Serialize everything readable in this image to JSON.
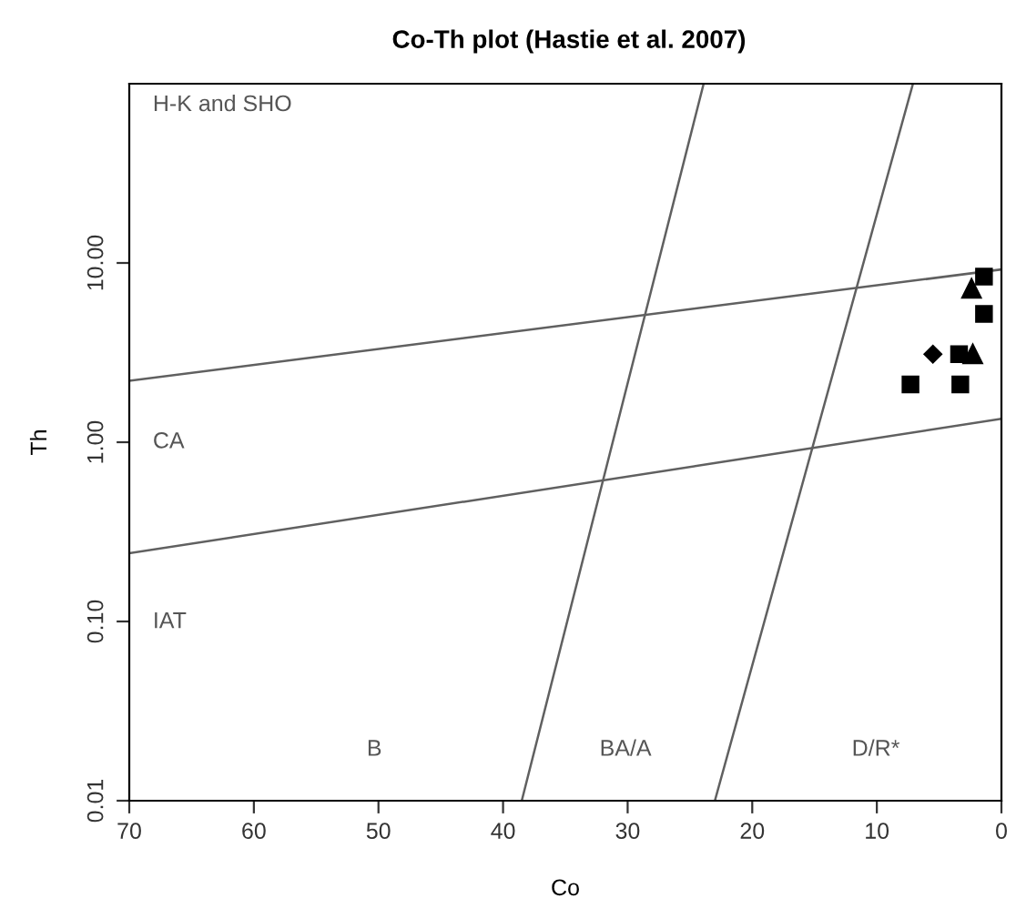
{
  "chart_data": {
    "type": "scatter",
    "title": "Co-Th plot (Hastie et al. 2007)",
    "xlabel": "Co",
    "ylabel": "Th",
    "log": "y",
    "xlim": [
      70,
      0
    ],
    "ylim": [
      0.01,
      100
    ],
    "xticks": [
      70,
      60,
      50,
      40,
      30,
      20,
      10,
      0
    ],
    "yticks": [
      {
        "value": 0.01,
        "label": "0.01"
      },
      {
        "value": 0.1,
        "label": "0.10"
      },
      {
        "value": 1,
        "label": "1.00"
      },
      {
        "value": 10,
        "label": "10.00"
      }
    ],
    "grid": false,
    "legend": false,
    "series": [
      {
        "type": "line",
        "color": "#606060",
        "x": [
          70,
          0
        ],
        "values": [
          2.2,
          9.2
        ]
      },
      {
        "type": "line",
        "color": "#606060",
        "x": [
          70,
          0
        ],
        "values": [
          0.24,
          1.35
        ]
      },
      {
        "type": "line",
        "color": "#606060",
        "x": [
          38.5,
          23.9
        ],
        "values": [
          0.01,
          100
        ]
      },
      {
        "type": "line",
        "color": "#606060",
        "x": [
          23.0,
          7.1
        ],
        "values": [
          0.01,
          100
        ]
      },
      {
        "marker": "square",
        "color": "#000000",
        "x": [
          1.4,
          1.4,
          3.4,
          7.3,
          3.3
        ],
        "values": [
          8.4,
          5.2,
          3.1,
          2.1,
          2.1
        ]
      },
      {
        "marker": "triangle",
        "color": "#000000",
        "x": [
          2.4,
          2.3
        ],
        "values": [
          7.2,
          3.1
        ]
      },
      {
        "marker": "diamond",
        "color": "#000000",
        "x": [
          5.5
        ],
        "values": [
          3.1
        ]
      }
    ],
    "annotations": [
      "H-K and SHO",
      "CA",
      "IAT",
      "B",
      "BA/A",
      "D/R*"
    ]
  }
}
